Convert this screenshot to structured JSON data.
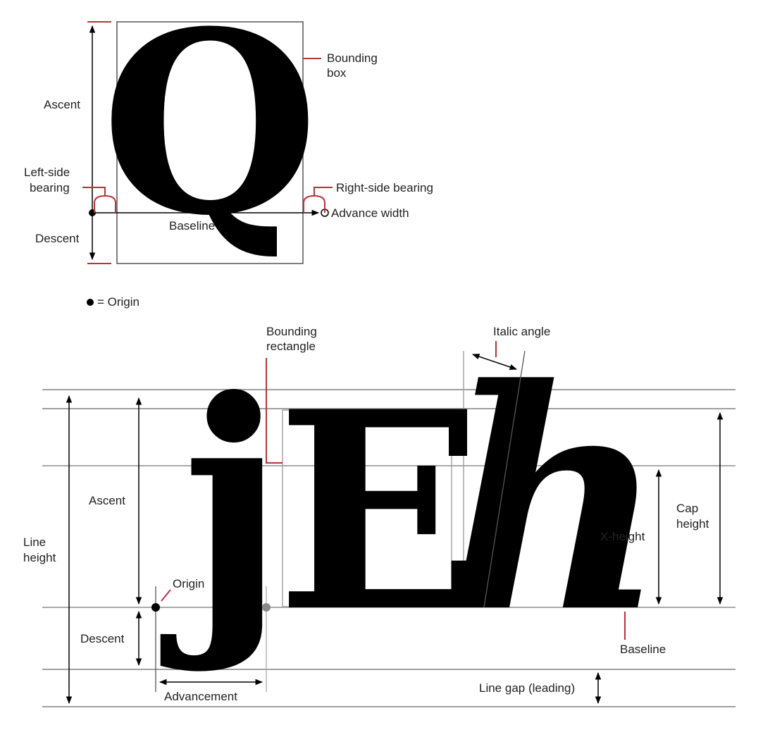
{
  "colors": {
    "ink": "#000000",
    "accent": "#b8333a",
    "guide_dark": "#555555",
    "guide_light": "#aaaaaa",
    "background": "#ffffff"
  },
  "top_figure": {
    "glyph": "Q",
    "labels": {
      "bounding_box": [
        "Bounding",
        "box"
      ],
      "ascent": "Ascent",
      "left_side_bearing": [
        "Left-side",
        "bearing"
      ],
      "right_side_bearing": "Right-side bearing",
      "advance_width": "Advance width",
      "baseline": "Baseline",
      "descent": "Descent"
    }
  },
  "legend": {
    "origin": "= Origin"
  },
  "bottom_figure": {
    "glyphs": {
      "j": "j",
      "E": "E",
      "h": "h"
    },
    "labels": {
      "bounding_rectangle": [
        "Bounding",
        "rectangle"
      ],
      "italic_angle": "Italic angle",
      "ascent": "Ascent",
      "line_height": [
        "Line",
        "height"
      ],
      "origin": "Origin",
      "descent": "Descent",
      "advancement": "Advancement",
      "cap_height": [
        "Cap",
        "height"
      ],
      "x_height": "X-height",
      "baseline": "Baseline",
      "line_gap": "Line gap (leading)"
    }
  }
}
